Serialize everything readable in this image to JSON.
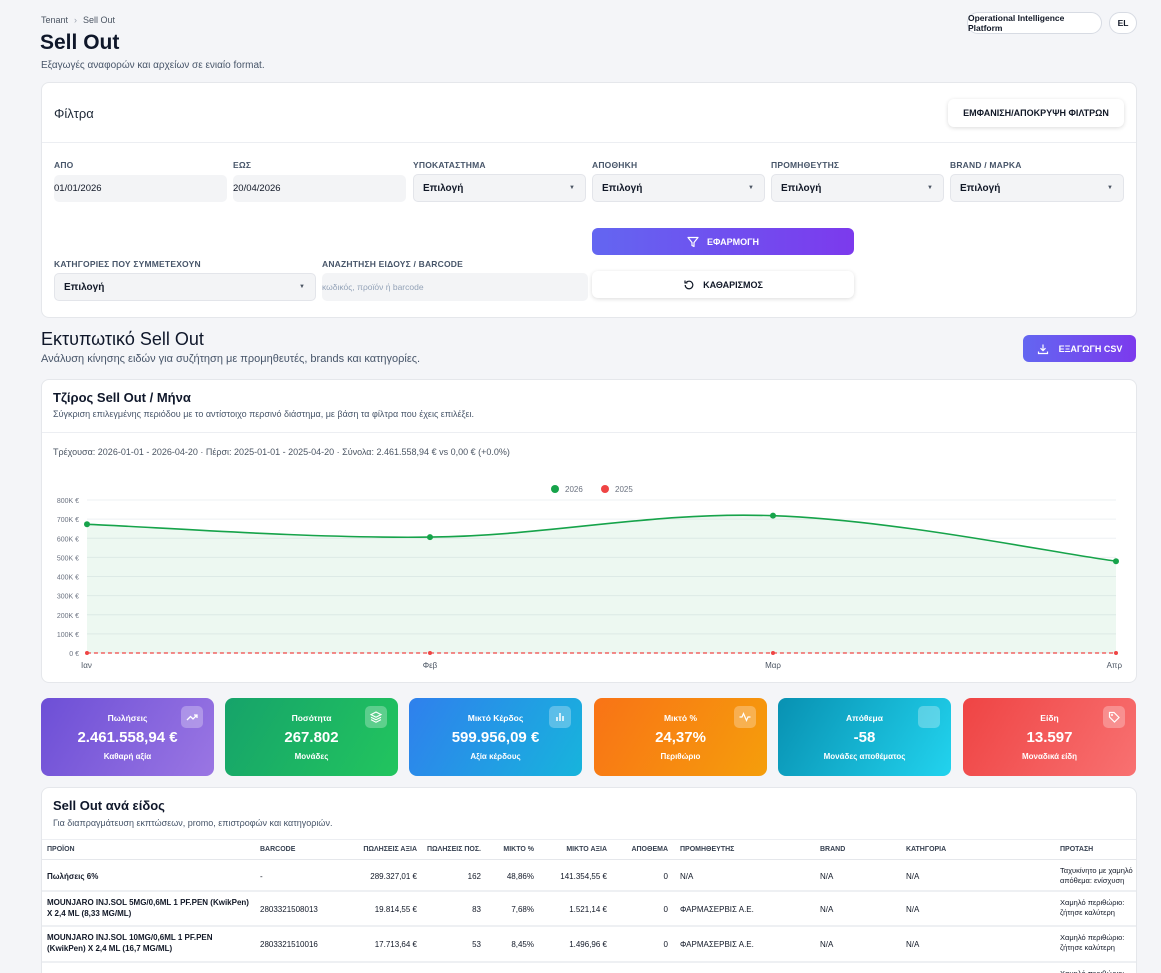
{
  "breadcrumb": {
    "root": "Tenant",
    "current": "Sell Out"
  },
  "header": {
    "title": "Sell Out",
    "subtitle": "Εξαγωγές αναφορών και αρχείων σε ενιαίο format.",
    "platform_label": "Operational Intelligence Platform",
    "language": "EL"
  },
  "filters": {
    "title": "Φίλτρα",
    "toggle_label": "ΕΜΦΑΝΙΣΗ/ΑΠΟΚΡΥΨΗ ΦΙΛΤΡΩΝ",
    "from": {
      "label": "ΑΠΟ",
      "value": "01/01/2026"
    },
    "to": {
      "label": "ΕΩΣ",
      "value": "20/04/2026"
    },
    "branch": {
      "label": "ΥΠΟΚΑΤΑΣΤΗΜΑ",
      "value": "Επιλογή"
    },
    "warehouse": {
      "label": "ΑΠΟΘΗΚΗ",
      "value": "Επιλογή"
    },
    "supplier": {
      "label": "ΠΡΟΜΗΘΕΥΤΗΣ",
      "value": "Επιλογή"
    },
    "brand": {
      "label": "BRAND / ΜΑΡΚΑ",
      "value": "Επιλογή"
    },
    "categories": {
      "label": "ΚΑΤΗΓΟΡΙΕΣ ΠΟΥ ΣΥΜΜΕΤΕΧΟΥΝ",
      "value": "Επιλογή"
    },
    "search": {
      "label": "ΑΝΑΖΗΤΗΣΗ ΕΙΔΟΥΣ / BARCODE",
      "placeholder": "κωδικός, προϊόν ή barcode"
    },
    "apply_label": "ΕΦΑΡΜΟΓΗ",
    "clear_label": "ΚΑΘΑΡΙΣΜΟΣ"
  },
  "report": {
    "title": "Εκτυπωτικό Sell Out",
    "subtitle": "Ανάλυση κίνησης ειδών για συζήτηση με προμηθευτές, brands και κατηγορίες.",
    "export_label": "ΕΞΑΓΩΓΗ CSV"
  },
  "chart_card": {
    "title": "Τζίρος Sell Out / Μήνα",
    "subtitle": "Σύγκριση επιλεγμένης περιόδου με το αντίστοιχο περσινό διάστημα, με βάση τα φίλτρα που έχεις επιλέξει.",
    "summary": "Τρέχουσα: 2026-01-01 - 2026-04-20 · Πέρσι: 2025-01-01 - 2025-04-20 · Σύνολα: 2.461.558,94 € vs 0,00 € (+0.0%)"
  },
  "chart_data": {
    "type": "area",
    "categories": [
      "Ιαν",
      "Φεβ",
      "Μαρ",
      "Απρ"
    ],
    "y_ticks": [
      "0 €",
      "100K €",
      "200K €",
      "300K €",
      "400K €",
      "500K €",
      "600K €",
      "700K €",
      "800K €"
    ],
    "ylim": [
      0,
      800000
    ],
    "legend_position": "top-center",
    "grid": true,
    "series": [
      {
        "name": "2026",
        "color": "#16a34a",
        "values": [
          673000,
          606000,
          718000,
          480000
        ]
      },
      {
        "name": "2025",
        "color": "#ef4444",
        "values": [
          0,
          0,
          0,
          0
        ]
      }
    ]
  },
  "kpis": [
    {
      "label": "Πωλήσεις",
      "value": "2.461.558,94 €",
      "sub": "Καθαρή αξία",
      "icon": "trend-up-icon",
      "from": "#6d4fd6",
      "to": "#9a76e3"
    },
    {
      "label": "Ποσότητα",
      "value": "267.802",
      "sub": "Μονάδες",
      "icon": "layers-icon",
      "from": "#16a36a",
      "to": "#22c55e"
    },
    {
      "label": "Μικτό Κέρδος",
      "value": "599.956,09 €",
      "sub": "Αξία κέρδους",
      "icon": "bar-chart-icon",
      "from": "#2f80ed",
      "to": "#17b4dc"
    },
    {
      "label": "Μικτό %",
      "value": "24,37%",
      "sub": "Περιθώριο",
      "icon": "activity-icon",
      "from": "#f97316",
      "to": "#f59e0b"
    },
    {
      "label": "Απόθεμα",
      "value": "-58",
      "sub": "Μονάδες αποθέματος",
      "icon": "box-icon",
      "from": "#0891b2",
      "to": "#22d3ee"
    },
    {
      "label": "Είδη",
      "value": "13.597",
      "sub": "Μοναδικά είδη",
      "icon": "tag-icon",
      "from": "#ef4444",
      "to": "#f87171"
    }
  ],
  "table": {
    "title": "Sell Out ανά είδος",
    "subtitle": "Για διαπραγμάτευση εκπτώσεων, promo, επιστροφών και κατηγοριών.",
    "columns": [
      "ΠΡΟΪΟΝ",
      "BARCODE",
      "ΠΩΛΗΣΕΙΣ ΑΞΙΑ",
      "ΠΩΛΗΣΕΙΣ ΠΟΣ.",
      "ΜΙΚΤΟ %",
      "ΜΙΚΤΟ ΑΞΙΑ",
      "ΑΠΟΘΕΜΑ",
      "ΠΡΟΜΗΘΕΥΤΗΣ",
      "BRAND",
      "ΚΑΤΗΓΟΡΙΑ",
      "ΠΡΟΤΑΣΗ"
    ],
    "rows": [
      {
        "product": "Πωλήσεις 6%",
        "barcode": "-",
        "sales_value": "289.327,01 €",
        "sales_qty": "162",
        "margin_pct": "48,86%",
        "margin_value": "141.354,55 €",
        "stock": "0",
        "supplier": "N/A",
        "brand": "N/A",
        "category": "N/A",
        "suggestion": "Ταχυκίνητο με χαμηλό απόθεμα: ενίσχυση παραγγελία."
      },
      {
        "product": "MOUNJARO INJ.SOL 5MG/0,6ML 1 PF.PEN (KwikPen) X 2,4 ML (8,33 MG/ML)",
        "barcode": "2803321508013",
        "sales_value": "19.814,55 €",
        "sales_qty": "83",
        "margin_pct": "7,68%",
        "margin_value": "1.521,14 €",
        "stock": "0",
        "supplier": "ΦΑΡΜΑΣΕΡΒΙΣ Α.Ε.",
        "brand": "N/A",
        "category": "N/A",
        "suggestion": "Χαμηλό περιθώριο: ζήτησε καλύτερη εμπορική πολιτική."
      },
      {
        "product": "MOUNJARO INJ.SOL 10MG/0,6ML 1 PF.PEN (KwikPen) X 2,4 ML (16,7 MG/ML)",
        "barcode": "2803321510016",
        "sales_value": "17.713,64 €",
        "sales_qty": "53",
        "margin_pct": "8,45%",
        "margin_value": "1.496,96 €",
        "stock": "0",
        "supplier": "ΦΑΡΜΑΣΕΡΒΙΣ Α.Ε.",
        "brand": "N/A",
        "category": "N/A",
        "suggestion": "Χαμηλό περιθώριο: ζήτησε καλύτερη εμπορική πολιτική."
      },
      {
        "product": "",
        "barcode": "",
        "sales_value": "",
        "sales_qty": "",
        "margin_pct": "",
        "margin_value": "",
        "stock": "",
        "supplier": "",
        "brand": "",
        "category": "",
        "suggestion": "Χαμηλό περιθώριο: ζήτησε"
      }
    ]
  }
}
